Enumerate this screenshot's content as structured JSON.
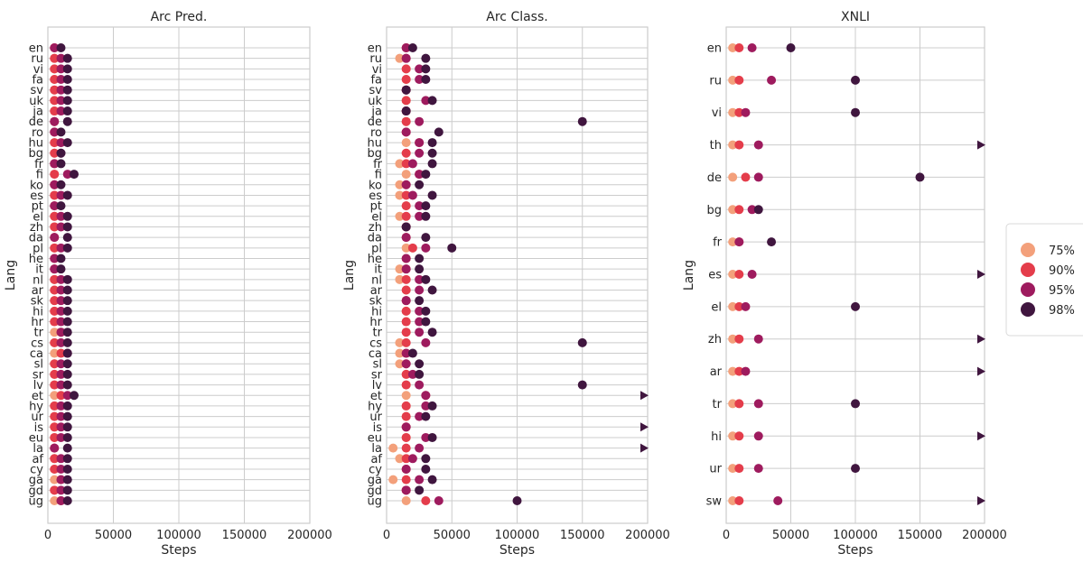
{
  "colors": {
    "75%": "#f3a07b",
    "90%": "#e43d4b",
    "95%": "#9e1b5e",
    "98%": "#40163f"
  },
  "legend": {
    "items": [
      "75%",
      "90%",
      "95%",
      "98%"
    ],
    "placement": "right"
  },
  "chart_data": [
    {
      "type": "scatter",
      "title": "Arc Pred.",
      "xlabel": "Steps",
      "ylabel": "Lang",
      "xlim": [
        0,
        200000
      ],
      "xticks": [
        "0",
        "50000",
        "100000",
        "150000",
        "200000"
      ],
      "grid": true,
      "categories": [
        "en",
        "ru",
        "vi",
        "fa",
        "sv",
        "uk",
        "ja",
        "de",
        "ro",
        "hu",
        "bg",
        "fr",
        "fi",
        "ko",
        "es",
        "pt",
        "el",
        "zh",
        "da",
        "pl",
        "he",
        "it",
        "nl",
        "ar",
        "sk",
        "hi",
        "hr",
        "tr",
        "cs",
        "ca",
        "sl",
        "sr",
        "lv",
        "et",
        "hy",
        "ur",
        "is",
        "eu",
        "la",
        "af",
        "cy",
        "ga",
        "gd",
        "ug"
      ],
      "series": [
        {
          "name": "75%",
          "values": [
            5000,
            5000,
            5000,
            5000,
            5000,
            5000,
            5000,
            5000,
            5000,
            5000,
            5000,
            5000,
            5000,
            5000,
            5000,
            5000,
            5000,
            5000,
            5000,
            5000,
            5000,
            5000,
            5000,
            5000,
            5000,
            5000,
            5000,
            5000,
            5000,
            5000,
            5000,
            5000,
            5000,
            5000,
            5000,
            5000,
            5000,
            5000,
            5000,
            5000,
            5000,
            5000,
            5000,
            5000
          ]
        },
        {
          "name": "90%",
          "values": [
            5000,
            5000,
            5000,
            5000,
            5000,
            5000,
            5000,
            5000,
            5000,
            5000,
            5000,
            5000,
            5000,
            5000,
            5000,
            5000,
            5000,
            5000,
            5000,
            5000,
            5000,
            5000,
            5000,
            5000,
            5000,
            5000,
            5000,
            10000,
            5000,
            10000,
            5000,
            5000,
            5000,
            10000,
            5000,
            5000,
            5000,
            5000,
            5000,
            5000,
            5000,
            10000,
            5000,
            10000
          ]
        },
        {
          "name": "95%",
          "values": [
            5000,
            10000,
            10000,
            10000,
            10000,
            10000,
            10000,
            5000,
            5000,
            10000,
            10000,
            5000,
            15000,
            5000,
            10000,
            5000,
            10000,
            10000,
            5000,
            10000,
            5000,
            5000,
            10000,
            10000,
            10000,
            10000,
            10000,
            10000,
            10000,
            15000,
            10000,
            10000,
            10000,
            15000,
            10000,
            10000,
            10000,
            10000,
            5000,
            10000,
            10000,
            10000,
            10000,
            10000
          ]
        },
        {
          "name": "98%",
          "values": [
            10000,
            15000,
            15000,
            15000,
            15000,
            15000,
            15000,
            15000,
            10000,
            15000,
            10000,
            10000,
            20000,
            10000,
            15000,
            10000,
            15000,
            15000,
            15000,
            15000,
            10000,
            10000,
            15000,
            15000,
            15000,
            15000,
            15000,
            15000,
            15000,
            15000,
            15000,
            15000,
            15000,
            20000,
            15000,
            15000,
            15000,
            15000,
            15000,
            15000,
            15000,
            15000,
            15000,
            15000
          ]
        }
      ]
    },
    {
      "type": "scatter",
      "title": "Arc Class.",
      "xlabel": "Steps",
      "ylabel": "Lang",
      "xlim": [
        0,
        200000
      ],
      "xticks": [
        "0",
        "50000",
        "100000",
        "150000",
        "200000"
      ],
      "grid": true,
      "categories": [
        "en",
        "ru",
        "vi",
        "fa",
        "sv",
        "uk",
        "ja",
        "de",
        "ro",
        "hu",
        "bg",
        "fr",
        "fi",
        "ko",
        "es",
        "pt",
        "el",
        "zh",
        "da",
        "pl",
        "he",
        "it",
        "nl",
        "ar",
        "sk",
        "hi",
        "hr",
        "tr",
        "cs",
        "ca",
        "sl",
        "sr",
        "lv",
        "et",
        "hy",
        "ur",
        "is",
        "eu",
        "la",
        "af",
        "cy",
        "ga",
        "gd",
        "ug"
      ],
      "series": [
        {
          "name": "75%",
          "values": [
            15000,
            10000,
            15000,
            15000,
            15000,
            15000,
            15000,
            15000,
            15000,
            15000,
            15000,
            10000,
            15000,
            10000,
            10000,
            15000,
            10000,
            15000,
            15000,
            15000,
            15000,
            10000,
            10000,
            15000,
            15000,
            15000,
            15000,
            15000,
            10000,
            10000,
            10000,
            15000,
            15000,
            15000,
            15000,
            15000,
            15000,
            15000,
            5000,
            10000,
            15000,
            5000,
            15000,
            15000
          ]
        },
        {
          "name": "90%",
          "values": [
            15000,
            15000,
            15000,
            15000,
            15000,
            15000,
            15000,
            15000,
            15000,
            25000,
            15000,
            15000,
            25000,
            15000,
            15000,
            15000,
            15000,
            15000,
            15000,
            20000,
            15000,
            15000,
            15000,
            15000,
            15000,
            15000,
            15000,
            15000,
            15000,
            15000,
            15000,
            15000,
            15000,
            30000,
            15000,
            15000,
            15000,
            15000,
            15000,
            15000,
            15000,
            15000,
            15000,
            30000
          ]
        },
        {
          "name": "95%",
          "values": [
            15000,
            15000,
            25000,
            25000,
            15000,
            30000,
            15000,
            25000,
            15000,
            25000,
            25000,
            20000,
            25000,
            15000,
            20000,
            25000,
            25000,
            15000,
            15000,
            30000,
            15000,
            15000,
            25000,
            25000,
            15000,
            25000,
            25000,
            25000,
            30000,
            15000,
            15000,
            20000,
            25000,
            30000,
            30000,
            25000,
            15000,
            30000,
            25000,
            20000,
            15000,
            25000,
            15000,
            40000
          ]
        },
        {
          "name": "98%",
          "values": [
            20000,
            30000,
            30000,
            30000,
            15000,
            35000,
            15000,
            150000,
            40000,
            35000,
            35000,
            35000,
            30000,
            25000,
            35000,
            30000,
            30000,
            15000,
            30000,
            50000,
            25000,
            25000,
            30000,
            35000,
            25000,
            30000,
            30000,
            35000,
            150000,
            20000,
            25000,
            25000,
            150000,
            200000,
            35000,
            30000,
            200000,
            35000,
            200000,
            30000,
            30000,
            35000,
            25000,
            100000
          ]
        }
      ]
    },
    {
      "type": "scatter",
      "title": "XNLI",
      "xlabel": "Steps",
      "ylabel": "Lang",
      "xlim": [
        0,
        200000
      ],
      "xticks": [
        "0",
        "50000",
        "100000",
        "150000",
        "200000"
      ],
      "grid": true,
      "categories": [
        "en",
        "ru",
        "vi",
        "th",
        "de",
        "bg",
        "fr",
        "es",
        "el",
        "zh",
        "ar",
        "tr",
        "hi",
        "ur",
        "sw"
      ],
      "series": [
        {
          "name": "75%",
          "values": [
            5000,
            5000,
            5000,
            5000,
            5000,
            5000,
            5000,
            5000,
            5000,
            5000,
            5000,
            5000,
            5000,
            5000,
            5000
          ]
        },
        {
          "name": "90%",
          "values": [
            10000,
            10000,
            10000,
            10000,
            15000,
            10000,
            10000,
            10000,
            10000,
            10000,
            10000,
            10000,
            10000,
            10000,
            10000
          ]
        },
        {
          "name": "95%",
          "values": [
            20000,
            35000,
            15000,
            25000,
            25000,
            20000,
            10000,
            20000,
            15000,
            25000,
            15000,
            25000,
            25000,
            25000,
            40000
          ]
        },
        {
          "name": "98%",
          "values": [
            50000,
            100000,
            100000,
            200000,
            150000,
            25000,
            35000,
            200000,
            100000,
            200000,
            200000,
            100000,
            200000,
            100000,
            200000
          ]
        }
      ]
    }
  ]
}
